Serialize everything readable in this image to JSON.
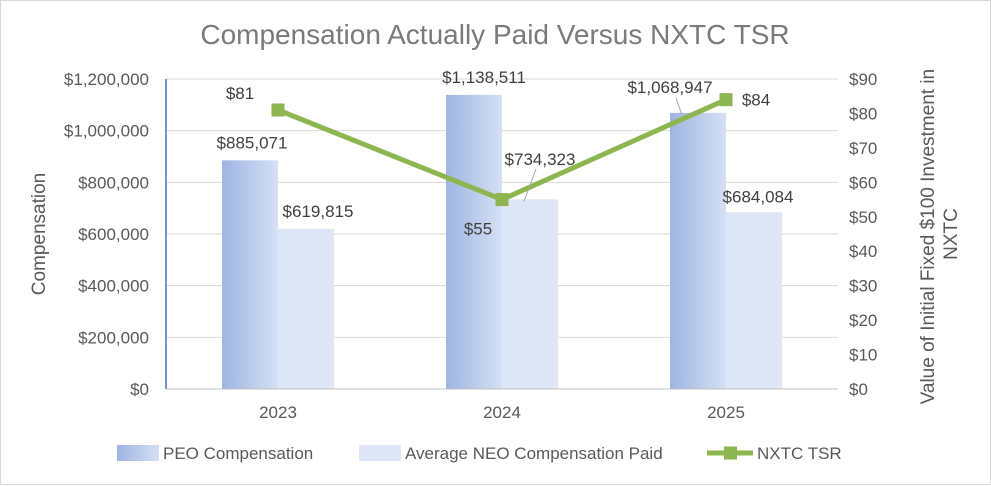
{
  "chart_data": {
    "type": "bar",
    "title": "Compensation Actually Paid Versus NXTC TSR",
    "categories": [
      "2023",
      "2024",
      "2025"
    ],
    "ylabel": "Compensation",
    "y2label_lines": [
      "Value of Initial Fixed $100 Investment in",
      "NXTC"
    ],
    "ylim": [
      0,
      1200000
    ],
    "y2lim": [
      0,
      90
    ],
    "yticks": [
      "$0",
      "$200,000",
      "$400,000",
      "$600,000",
      "$800,000",
      "$1,000,000",
      "$1,200,000"
    ],
    "y2ticks": [
      "$0",
      "$10",
      "$20",
      "$30",
      "$40",
      "$50",
      "$60",
      "$70",
      "$80",
      "$90"
    ],
    "grid": true,
    "legend_position": "bottom",
    "series": [
      {
        "name": "PEO Compensation",
        "kind": "bar",
        "axis": "left",
        "color": "#a9bde6",
        "values": [
          885071,
          1138511,
          1068947
        ],
        "labels": [
          "$885,071",
          "$1,138,511",
          "$1,068,947"
        ]
      },
      {
        "name": "Average NEO Compensation Paid",
        "kind": "bar",
        "axis": "left",
        "color": "#dde6f6",
        "values": [
          619815,
          734323,
          684084
        ],
        "labels": [
          "$619,815",
          "$734,323",
          "$684,084"
        ]
      },
      {
        "name": "NXTC TSR",
        "kind": "line",
        "axis": "right",
        "color": "#8db650",
        "values": [
          81,
          55,
          84
        ],
        "labels": [
          "$81",
          "$55",
          "$84"
        ]
      }
    ]
  }
}
